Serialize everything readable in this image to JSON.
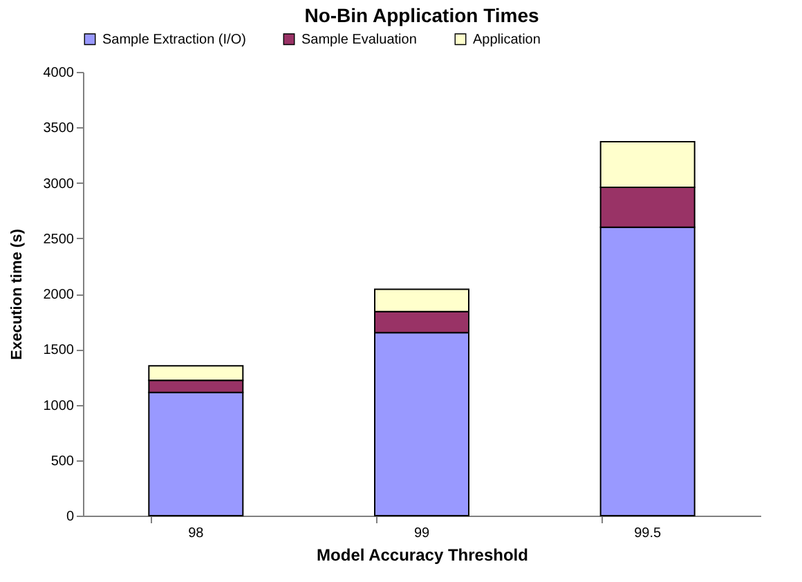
{
  "chart_data": {
    "type": "bar",
    "title": "No-Bin Application Times",
    "xlabel": "Model Accuracy Threshold",
    "ylabel": "Execution time (s)",
    "categories": [
      "98",
      "99",
      "99.5"
    ],
    "stacked": true,
    "series": [
      {
        "name": "Sample Extraction (I/O)",
        "color": "#9999ff",
        "values": [
          1110,
          1650,
          2600
        ]
      },
      {
        "name": "Sample Evaluation",
        "color": "#993366",
        "values": [
          110,
          190,
          360
        ]
      },
      {
        "name": "Application",
        "color": "#ffffcc",
        "values": [
          130,
          200,
          410
        ]
      }
    ],
    "ylim": [
      0,
      4000
    ],
    "yticks": [
      0,
      500,
      1000,
      1500,
      2000,
      2500,
      3000,
      3500,
      4000
    ],
    "grid": false,
    "legend": "top"
  }
}
